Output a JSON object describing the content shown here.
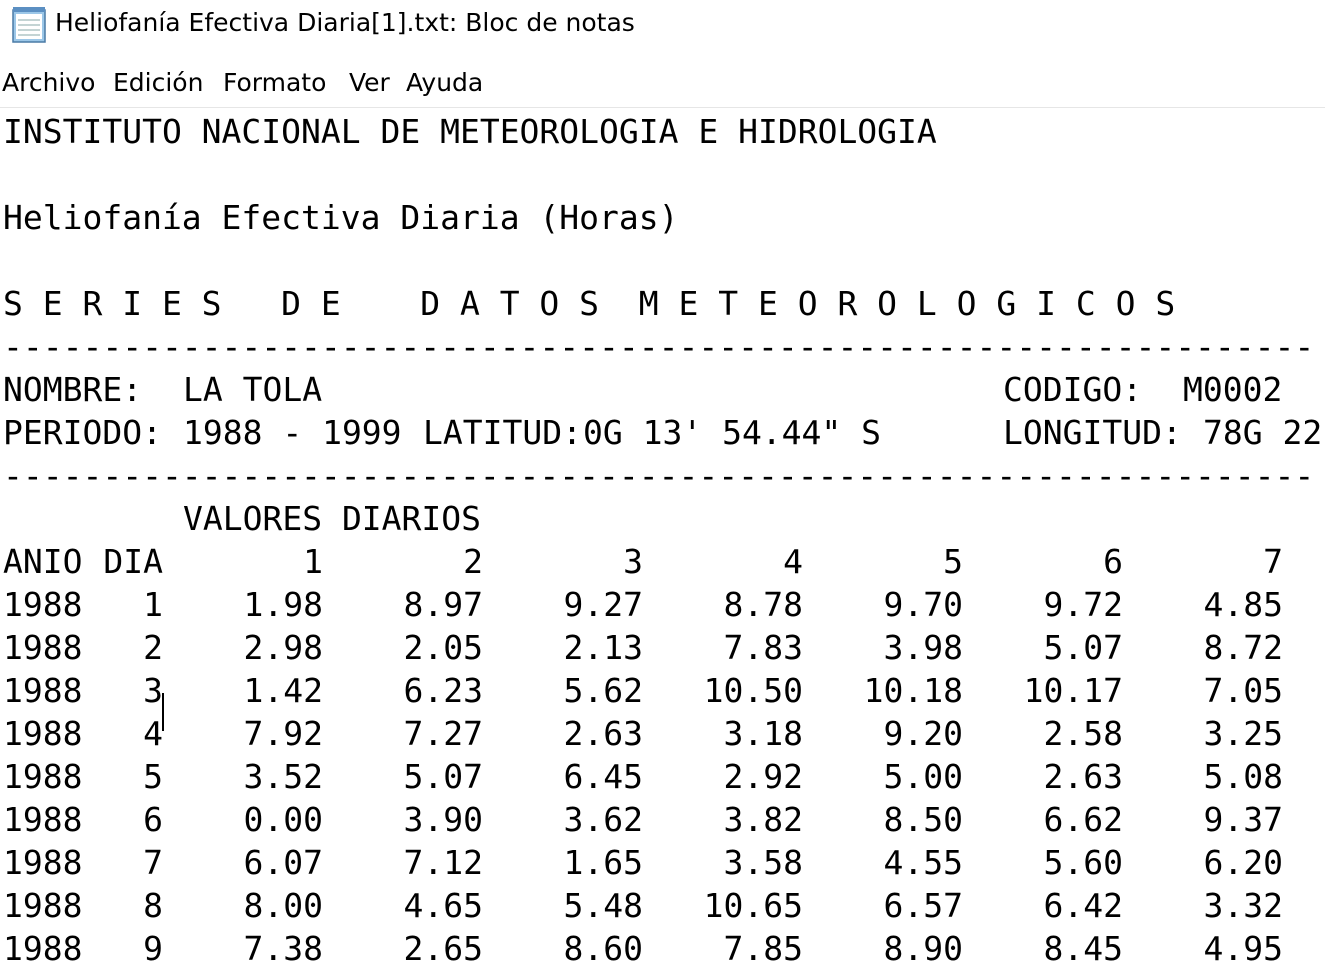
{
  "window": {
    "title": "Heliofanía Efectiva Diaria[1].txt: Bloc de notas",
    "menu": [
      "Archivo",
      "Edición",
      "Formato",
      "Ver",
      "Ayuda"
    ]
  },
  "document": {
    "institute": "INSTITUTO NACIONAL DE METEOROLOGIA E HIDROLOGIA",
    "subtitle": "Heliofanía Efectiva Diaria (Horas)",
    "series_heading": "S E R I E S   D E    D A T O S  M E T E O R O L O G I C O S",
    "separator": "------------------------------------------------------------------",
    "nombre_label": "NOMBRE:",
    "nombre": "LA TOLA",
    "codigo_label": "CODIGO:",
    "codigo": "M0002",
    "periodo_label": "PERIODO:",
    "periodo": "1988 - 1999",
    "latitud_label": "LATITUD:",
    "latitud": "0G 13' 54.44\" S",
    "longitud_label": "LONGITUD:",
    "longitud": "78G 22",
    "table_title": "VALORES DIARIOS",
    "columns": [
      "ANIO",
      "DIA",
      "1",
      "2",
      "3",
      "4",
      "5",
      "6",
      "7"
    ],
    "rows": [
      [
        "1988",
        "1",
        "1.98",
        "8.97",
        "9.27",
        "8.78",
        "9.70",
        "9.72",
        "4.85"
      ],
      [
        "1988",
        "2",
        "2.98",
        "2.05",
        "2.13",
        "7.83",
        "3.98",
        "5.07",
        "8.72"
      ],
      [
        "1988",
        "3",
        "1.42",
        "6.23",
        "5.62",
        "10.50",
        "10.18",
        "10.17",
        "7.05"
      ],
      [
        "1988",
        "4",
        "7.92",
        "7.27",
        "2.63",
        "3.18",
        "9.20",
        "2.58",
        "3.25"
      ],
      [
        "1988",
        "5",
        "3.52",
        "5.07",
        "6.45",
        "2.92",
        "5.00",
        "2.63",
        "5.08"
      ],
      [
        "1988",
        "6",
        "0.00",
        "3.90",
        "3.62",
        "3.82",
        "8.50",
        "6.62",
        "9.37"
      ],
      [
        "1988",
        "7",
        "6.07",
        "7.12",
        "1.65",
        "3.58",
        "4.55",
        "5.60",
        "6.20"
      ],
      [
        "1988",
        "8",
        "8.00",
        "4.65",
        "5.48",
        "10.65",
        "6.57",
        "6.42",
        "3.32"
      ],
      [
        "1988",
        "9",
        "7.38",
        "2.65",
        "8.60",
        "7.85",
        "8.90",
        "8.45",
        "4.95"
      ]
    ]
  }
}
